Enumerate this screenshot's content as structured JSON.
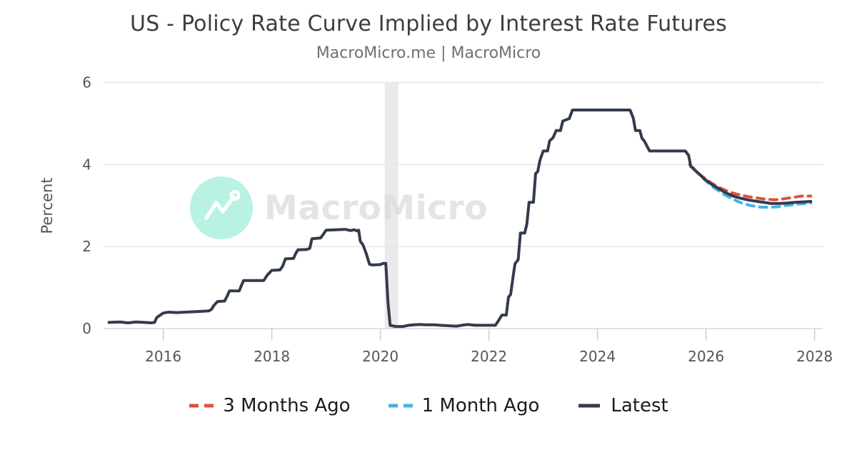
{
  "header": {
    "title": "US - Policy Rate Curve Implied by Interest Rate Futures",
    "subtitle": "MacroMicro.me | MacroMicro"
  },
  "watermark": {
    "text": "MacroMicro"
  },
  "colors": {
    "grid": "#e6e6e6",
    "axis_line": "#d6d6d6",
    "tick": "#cccccc",
    "tick_label": "#555555",
    "watermark_circle": "#b9f2e2",
    "watermark_text": "#e4e4e4"
  },
  "chart_data": {
    "type": "line",
    "title": "US - Policy Rate Curve Implied by Interest Rate Futures",
    "subtitle": "MacroMicro.me | MacroMicro",
    "xlabel": "",
    "ylabel": "Percent",
    "x_range": [
      2014.9,
      2028.15
    ],
    "y_range": [
      0,
      6
    ],
    "x_ticks": [
      2016,
      2018,
      2020,
      2022,
      2024,
      2026,
      2028
    ],
    "y_ticks": [
      0,
      2,
      4,
      6
    ],
    "grid": "horizontal",
    "legend_position": "bottom",
    "recession_band": {
      "x_start": 2020.08,
      "x_end": 2020.33,
      "color": "#d9d9d9",
      "opacity": 0.55
    },
    "series": [
      {
        "name": "3 Months Ago",
        "color": "#e0503c",
        "style": "dashed",
        "points": [
          [
            2025.7,
            4.0
          ],
          [
            2025.74,
            3.93
          ],
          [
            2025.8,
            3.85
          ],
          [
            2025.88,
            3.76
          ],
          [
            2025.96,
            3.68
          ],
          [
            2026.06,
            3.58
          ],
          [
            2026.16,
            3.5
          ],
          [
            2026.26,
            3.43
          ],
          [
            2026.36,
            3.37
          ],
          [
            2026.46,
            3.32
          ],
          [
            2026.56,
            3.28
          ],
          [
            2026.66,
            3.25
          ],
          [
            2026.76,
            3.22
          ],
          [
            2026.86,
            3.2
          ],
          [
            2026.96,
            3.18
          ],
          [
            2027.06,
            3.16
          ],
          [
            2027.16,
            3.15
          ],
          [
            2027.26,
            3.14
          ],
          [
            2027.36,
            3.15
          ],
          [
            2027.46,
            3.17
          ],
          [
            2027.56,
            3.19
          ],
          [
            2027.66,
            3.21
          ],
          [
            2027.76,
            3.23
          ],
          [
            2027.86,
            3.23
          ],
          [
            2027.93,
            3.23
          ]
        ]
      },
      {
        "name": "1 Month Ago",
        "color": "#45b3e2",
        "style": "dashed",
        "points": [
          [
            2025.78,
            3.88
          ],
          [
            2025.84,
            3.8
          ],
          [
            2025.92,
            3.7
          ],
          [
            2026.02,
            3.57
          ],
          [
            2026.12,
            3.46
          ],
          [
            2026.22,
            3.37
          ],
          [
            2026.32,
            3.28
          ],
          [
            2026.42,
            3.21
          ],
          [
            2026.52,
            3.14
          ],
          [
            2026.62,
            3.08
          ],
          [
            2026.72,
            3.04
          ],
          [
            2026.82,
            3.0
          ],
          [
            2026.92,
            2.98
          ],
          [
            2027.02,
            2.96
          ],
          [
            2027.12,
            2.96
          ],
          [
            2027.22,
            2.96
          ],
          [
            2027.32,
            2.97
          ],
          [
            2027.42,
            2.99
          ],
          [
            2027.52,
            3.01
          ],
          [
            2027.62,
            3.02
          ],
          [
            2027.72,
            3.04
          ],
          [
            2027.82,
            3.05
          ],
          [
            2027.93,
            3.06
          ]
        ]
      },
      {
        "name": "Latest",
        "color": "#333b4d",
        "style": "solid",
        "points": [
          [
            2015.0,
            0.15
          ],
          [
            2015.2,
            0.16
          ],
          [
            2015.35,
            0.14
          ],
          [
            2015.5,
            0.16
          ],
          [
            2015.65,
            0.15
          ],
          [
            2015.78,
            0.14
          ],
          [
            2015.84,
            0.15
          ],
          [
            2015.88,
            0.27
          ],
          [
            2016.0,
            0.38
          ],
          [
            2016.1,
            0.4
          ],
          [
            2016.25,
            0.39
          ],
          [
            2016.4,
            0.4
          ],
          [
            2016.55,
            0.41
          ],
          [
            2016.7,
            0.42
          ],
          [
            2016.84,
            0.43
          ],
          [
            2016.89,
            0.47
          ],
          [
            2016.93,
            0.56
          ],
          [
            2017.0,
            0.66
          ],
          [
            2017.13,
            0.67
          ],
          [
            2017.18,
            0.8
          ],
          [
            2017.22,
            0.92
          ],
          [
            2017.4,
            0.92
          ],
          [
            2017.44,
            1.05
          ],
          [
            2017.48,
            1.17
          ],
          [
            2017.85,
            1.17
          ],
          [
            2017.92,
            1.31
          ],
          [
            2018.0,
            1.42
          ],
          [
            2018.15,
            1.43
          ],
          [
            2018.2,
            1.52
          ],
          [
            2018.25,
            1.7
          ],
          [
            2018.4,
            1.71
          ],
          [
            2018.44,
            1.83
          ],
          [
            2018.48,
            1.92
          ],
          [
            2018.65,
            1.93
          ],
          [
            2018.7,
            1.96
          ],
          [
            2018.74,
            2.19
          ],
          [
            2018.9,
            2.21
          ],
          [
            2018.94,
            2.28
          ],
          [
            2019.0,
            2.4
          ],
          [
            2019.2,
            2.41
          ],
          [
            2019.35,
            2.42
          ],
          [
            2019.45,
            2.39
          ],
          [
            2019.52,
            2.41
          ],
          [
            2019.57,
            2.38
          ],
          [
            2019.6,
            2.4
          ],
          [
            2019.63,
            2.13
          ],
          [
            2019.68,
            2.04
          ],
          [
            2019.74,
            1.83
          ],
          [
            2019.8,
            1.57
          ],
          [
            2019.85,
            1.55
          ],
          [
            2020.0,
            1.56
          ],
          [
            2020.05,
            1.59
          ],
          [
            2020.1,
            1.59
          ],
          [
            2020.14,
            0.65
          ],
          [
            2020.18,
            0.08
          ],
          [
            2020.28,
            0.05
          ],
          [
            2020.42,
            0.05
          ],
          [
            2020.52,
            0.08
          ],
          [
            2020.62,
            0.09
          ],
          [
            2020.72,
            0.1
          ],
          [
            2020.85,
            0.09
          ],
          [
            2021.0,
            0.09
          ],
          [
            2021.1,
            0.08
          ],
          [
            2021.25,
            0.07
          ],
          [
            2021.4,
            0.06
          ],
          [
            2021.5,
            0.08
          ],
          [
            2021.6,
            0.1
          ],
          [
            2021.75,
            0.08
          ],
          [
            2021.9,
            0.08
          ],
          [
            2022.0,
            0.08
          ],
          [
            2022.12,
            0.08
          ],
          [
            2022.18,
            0.2
          ],
          [
            2022.24,
            0.33
          ],
          [
            2022.32,
            0.33
          ],
          [
            2022.36,
            0.77
          ],
          [
            2022.4,
            0.83
          ],
          [
            2022.44,
            1.21
          ],
          [
            2022.48,
            1.58
          ],
          [
            2022.54,
            1.68
          ],
          [
            2022.58,
            2.33
          ],
          [
            2022.66,
            2.33
          ],
          [
            2022.7,
            2.56
          ],
          [
            2022.74,
            3.08
          ],
          [
            2022.82,
            3.08
          ],
          [
            2022.86,
            3.78
          ],
          [
            2022.9,
            3.83
          ],
          [
            2022.94,
            4.1
          ],
          [
            2023.0,
            4.33
          ],
          [
            2023.08,
            4.33
          ],
          [
            2023.12,
            4.58
          ],
          [
            2023.18,
            4.65
          ],
          [
            2023.24,
            4.83
          ],
          [
            2023.32,
            4.83
          ],
          [
            2023.36,
            5.06
          ],
          [
            2023.4,
            5.08
          ],
          [
            2023.48,
            5.12
          ],
          [
            2023.54,
            5.33
          ],
          [
            2023.8,
            5.33
          ],
          [
            2024.1,
            5.33
          ],
          [
            2024.4,
            5.33
          ],
          [
            2024.6,
            5.33
          ],
          [
            2024.66,
            5.13
          ],
          [
            2024.7,
            4.83
          ],
          [
            2024.78,
            4.83
          ],
          [
            2024.82,
            4.64
          ],
          [
            2024.86,
            4.58
          ],
          [
            2024.9,
            4.48
          ],
          [
            2024.96,
            4.33
          ],
          [
            2025.2,
            4.33
          ],
          [
            2025.62,
            4.33
          ],
          [
            2025.68,
            4.22
          ],
          [
            2025.72,
            3.95
          ],
          [
            2025.76,
            3.92
          ],
          [
            2025.8,
            3.86
          ],
          [
            2025.88,
            3.76
          ],
          [
            2025.96,
            3.66
          ],
          [
            2026.0,
            3.62
          ],
          [
            2026.1,
            3.52
          ],
          [
            2026.2,
            3.44
          ],
          [
            2026.3,
            3.36
          ],
          [
            2026.4,
            3.29
          ],
          [
            2026.5,
            3.23
          ],
          [
            2026.6,
            3.19
          ],
          [
            2026.7,
            3.16
          ],
          [
            2026.8,
            3.13
          ],
          [
            2026.9,
            3.11
          ],
          [
            2027.0,
            3.09
          ],
          [
            2027.1,
            3.07
          ],
          [
            2027.2,
            3.05
          ],
          [
            2027.35,
            3.05
          ],
          [
            2027.5,
            3.06
          ],
          [
            2027.65,
            3.08
          ],
          [
            2027.8,
            3.09
          ],
          [
            2027.93,
            3.1
          ]
        ]
      }
    ]
  }
}
